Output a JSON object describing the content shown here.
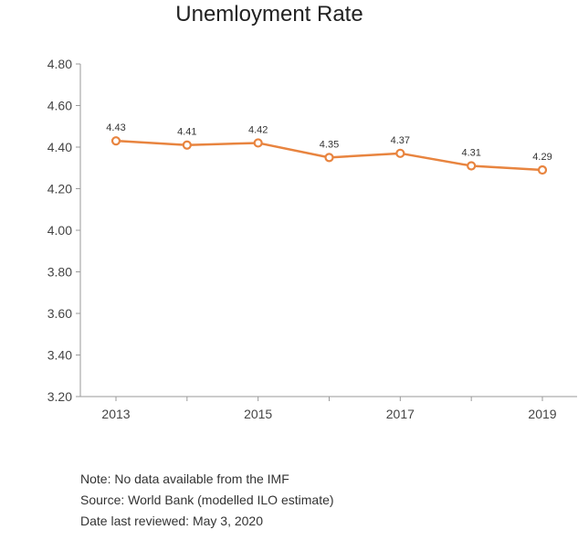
{
  "chart_data": {
    "type": "line",
    "title": "Unemloyment Rate",
    "x": [
      2013,
      2014,
      2015,
      2016,
      2017,
      2018,
      2019
    ],
    "x_tick_labels": [
      "2013",
      "2015",
      "2017",
      "2019"
    ],
    "series": [
      {
        "values": [
          4.43,
          4.41,
          4.42,
          4.35,
          4.37,
          4.31,
          4.29
        ],
        "data_labels": [
          "4.43",
          "4.41",
          "4.42",
          "4.35",
          "4.37",
          "4.31",
          "4.29"
        ]
      }
    ],
    "ylim": [
      3.2,
      4.8
    ],
    "y_ticks": [
      "3.20",
      "3.40",
      "3.60",
      "3.80",
      "4.00",
      "4.20",
      "4.40",
      "4.60",
      "4.80"
    ],
    "xlabel": "",
    "ylabel": "",
    "grid": false,
    "line_color": "#e8843f"
  },
  "notes": {
    "note": "Note: No data available from the IMF",
    "source": "Source: World Bank (modelled ILO estimate)",
    "reviewed": "Date last reviewed: May 3, 2020"
  }
}
